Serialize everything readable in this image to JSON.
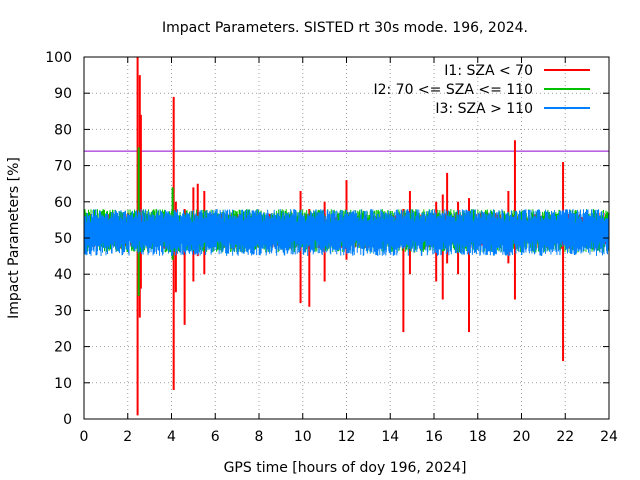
{
  "chart_data": {
    "type": "line",
    "title": "Impact Parameters. SISTED rt 30s mode. 196, 2024.",
    "xlabel": "GPS time [hours of doy 196, 2024]",
    "ylabel": "Impact Parameters [%]",
    "xlim": [
      0,
      24
    ],
    "ylim": [
      0,
      100
    ],
    "x_ticks": [
      "0",
      "2",
      "4",
      "6",
      "8",
      "10",
      "12",
      "14",
      "16",
      "18",
      "20",
      "22",
      "24"
    ],
    "y_ticks": [
      "0",
      "10",
      "20",
      "30",
      "40",
      "50",
      "60",
      "70",
      "80",
      "90",
      "100"
    ],
    "grid": true,
    "legend_position": "top-right",
    "threshold": {
      "value": 74,
      "color": "#9400d3"
    },
    "series": [
      {
        "name": "I1: SZA < 70",
        "color": "#ff0000",
        "baseline": 52,
        "band": [
          47,
          57
        ],
        "spikes": [
          {
            "x": 2.45,
            "lo": 1,
            "hi": 100
          },
          {
            "x": 2.55,
            "lo": 28,
            "hi": 95
          },
          {
            "x": 2.6,
            "lo": 36,
            "hi": 84
          },
          {
            "x": 4.1,
            "lo": 8,
            "hi": 89
          },
          {
            "x": 4.2,
            "lo": 35,
            "hi": 60
          },
          {
            "x": 4.6,
            "lo": 26,
            "hi": 58
          },
          {
            "x": 5.0,
            "lo": 38,
            "hi": 64
          },
          {
            "x": 5.5,
            "lo": 40,
            "hi": 63
          },
          {
            "x": 5.2,
            "lo": 45,
            "hi": 65
          },
          {
            "x": 9.9,
            "lo": 32,
            "hi": 63
          },
          {
            "x": 10.3,
            "lo": 31,
            "hi": 58
          },
          {
            "x": 11.0,
            "lo": 38,
            "hi": 60
          },
          {
            "x": 12.0,
            "lo": 44,
            "hi": 66
          },
          {
            "x": 14.6,
            "lo": 24,
            "hi": 58
          },
          {
            "x": 14.9,
            "lo": 40,
            "hi": 63
          },
          {
            "x": 16.1,
            "lo": 38,
            "hi": 60
          },
          {
            "x": 16.4,
            "lo": 33,
            "hi": 62
          },
          {
            "x": 16.6,
            "lo": 43,
            "hi": 68
          },
          {
            "x": 17.1,
            "lo": 40,
            "hi": 60
          },
          {
            "x": 17.6,
            "lo": 24,
            "hi": 61
          },
          {
            "x": 19.4,
            "lo": 43,
            "hi": 63
          },
          {
            "x": 19.7,
            "lo": 33,
            "hi": 77
          },
          {
            "x": 21.9,
            "lo": 16,
            "hi": 71
          }
        ]
      },
      {
        "name": "I2: 70 <= SZA <= 110",
        "color": "#00c000",
        "baseline": 52,
        "band": [
          46,
          58
        ],
        "spikes": [
          {
            "x": 2.5,
            "lo": 34,
            "hi": 75
          },
          {
            "x": 4.05,
            "lo": 44,
            "hi": 64
          }
        ]
      },
      {
        "name": "I3: SZA > 110",
        "color": "#0080ff",
        "baseline": 52,
        "band": [
          45,
          58
        ],
        "spikes": []
      }
    ]
  }
}
